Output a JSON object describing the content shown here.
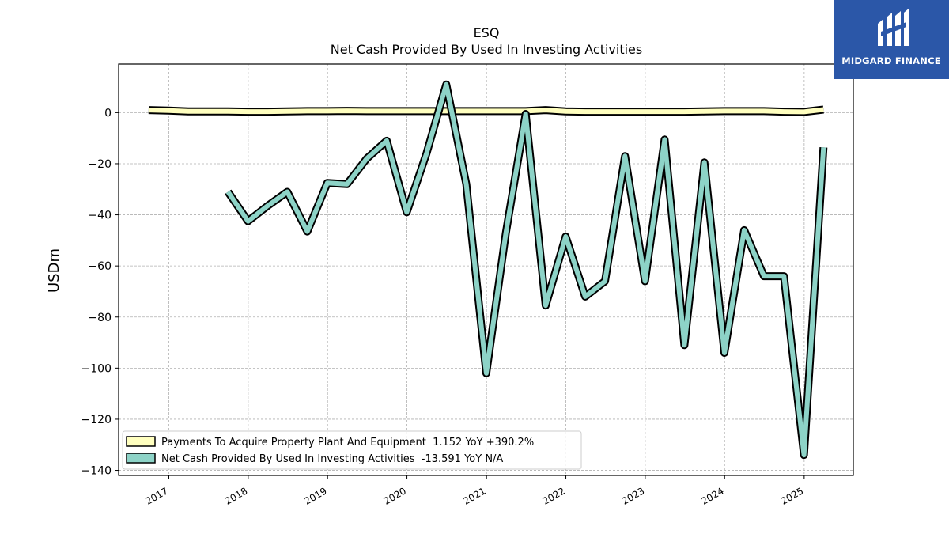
{
  "chart_data": {
    "type": "line",
    "title": "ESQ",
    "subtitle": "Net Cash Provided By Used In Investing Activities",
    "ylabel": "USDm",
    "xlabel": "",
    "xlim": [
      "2016-05-15",
      "2025-08-15"
    ],
    "ylim": [
      -142,
      19
    ],
    "y_ticks": [
      0,
      -20,
      -40,
      -60,
      -80,
      -100,
      -120,
      -140
    ],
    "x_ticks": [
      "2017",
      "2018",
      "2019",
      "2020",
      "2021",
      "2022",
      "2023",
      "2024",
      "2025"
    ],
    "grid": true,
    "legend_position": "lower-left",
    "series": [
      {
        "name": "Payments To Acquire Property Plant And Equipment  1.152 YoY +390.2%",
        "color": "#ffffbf",
        "x": [
          "2016-09-30",
          "2016-12-31",
          "2017-03-31",
          "2017-06-30",
          "2017-09-30",
          "2017-12-31",
          "2018-03-31",
          "2018-06-30",
          "2018-09-30",
          "2018-12-31",
          "2019-03-31",
          "2019-06-30",
          "2019-09-30",
          "2019-12-31",
          "2020-03-31",
          "2020-06-30",
          "2020-09-30",
          "2020-12-31",
          "2021-03-31",
          "2021-06-30",
          "2021-09-30",
          "2021-12-31",
          "2022-03-31",
          "2022-06-30",
          "2022-09-30",
          "2022-12-31",
          "2023-03-31",
          "2023-06-30",
          "2023-09-30",
          "2023-12-31",
          "2024-03-31",
          "2024-06-30",
          "2024-09-30",
          "2024-12-31",
          "2025-03-31"
        ],
        "values": [
          1.0,
          0.8,
          0.5,
          0.5,
          0.5,
          0.4,
          0.4,
          0.5,
          0.6,
          0.6,
          0.7,
          0.6,
          0.6,
          0.6,
          0.6,
          0.6,
          0.6,
          0.6,
          0.6,
          0.6,
          1.0,
          0.5,
          0.4,
          0.4,
          0.4,
          0.4,
          0.4,
          0.4,
          0.5,
          0.6,
          0.6,
          0.6,
          0.4,
          0.3,
          1.2
        ]
      },
      {
        "name": "Net Cash Provided By Used In Investing Activities  -13.591 YoY N/A",
        "color": "#8dd3c7",
        "x": [
          "2017-09-30",
          "2017-12-31",
          "2018-03-31",
          "2018-06-30",
          "2018-09-30",
          "2018-12-31",
          "2019-03-31",
          "2019-06-30",
          "2019-09-30",
          "2019-12-31",
          "2020-03-31",
          "2020-06-30",
          "2020-09-30",
          "2020-12-31",
          "2021-03-31",
          "2021-06-30",
          "2021-09-30",
          "2021-12-31",
          "2022-03-31",
          "2022-06-30",
          "2022-09-30",
          "2022-12-31",
          "2023-03-31",
          "2023-06-30",
          "2023-09-30",
          "2023-12-31",
          "2024-03-31",
          "2024-06-30",
          "2024-09-30",
          "2024-12-31",
          "2025-03-31"
        ],
        "values": [
          -31,
          -42.5,
          -36.5,
          -31,
          -46.5,
          -27.5,
          -28,
          -18,
          -11,
          -39,
          -16,
          11,
          -28,
          -102,
          -47,
          -0.5,
          -75.5,
          -48.5,
          -72,
          -66,
          -17,
          -66,
          -10.5,
          -91,
          -19.5,
          -94,
          -46,
          -64,
          -64,
          -134,
          -13.6
        ]
      }
    ]
  },
  "logo": {
    "text": "MIDGARD FINANCE",
    "icon": "midgard-m-logo-icon",
    "color": "#2b57a8"
  }
}
